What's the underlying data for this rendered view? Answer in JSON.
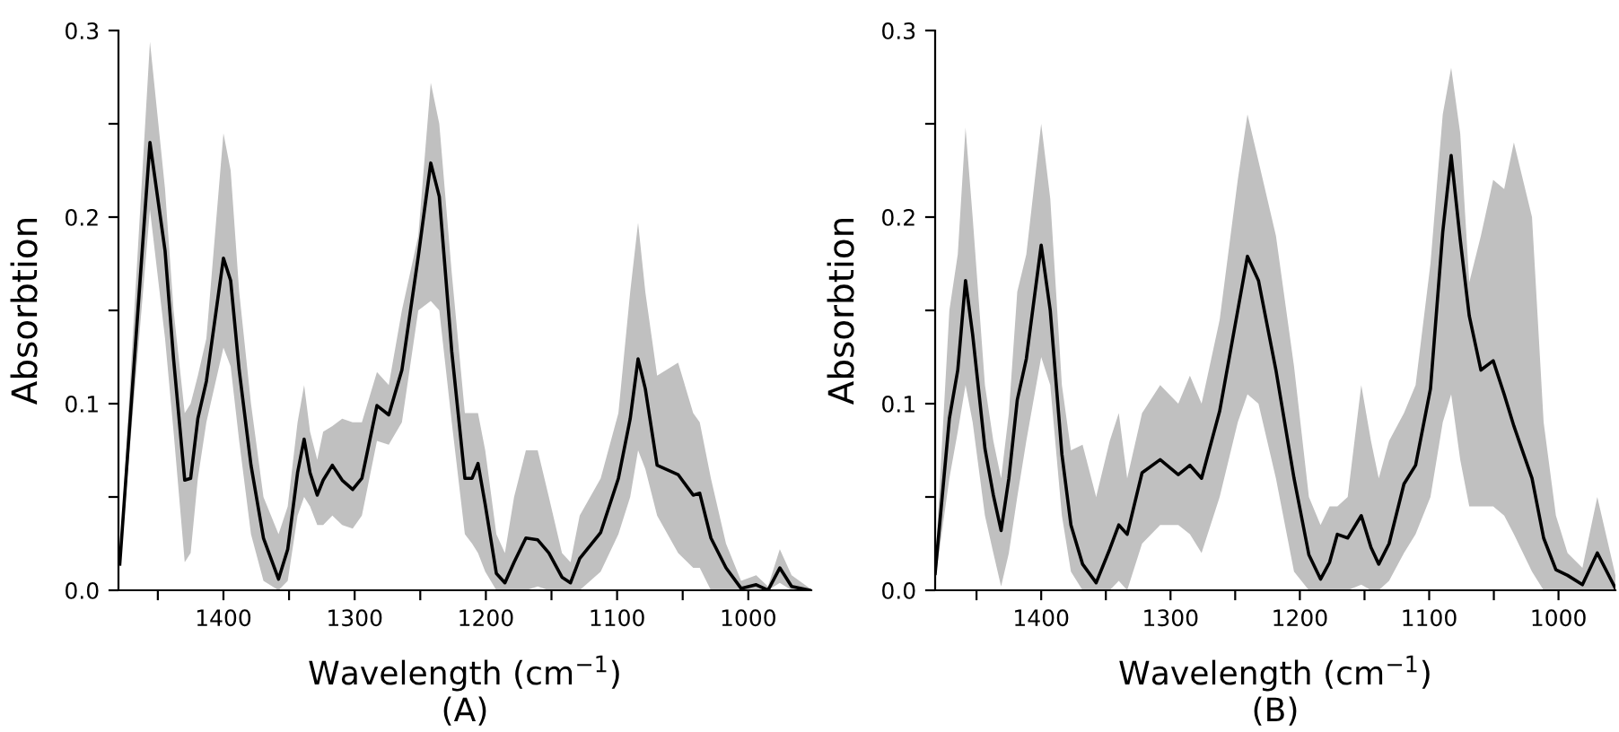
{
  "chart_data": [
    {
      "type": "line",
      "xlabel": "Wavelength (cm$^{−1}$)",
      "ylabel": "Absorbtion",
      "annotations": [
        "(A)"
      ],
      "xlim": [
        1480,
        952
      ],
      "ylim": [
        0,
        0.3
      ],
      "xticks": [
        {
          "value": 1450,
          "label": null
        },
        1400,
        {
          "value": 1350,
          "label": null
        },
        1300,
        {
          "value": 1250,
          "label": null
        },
        1200,
        {
          "value": 1150,
          "label": null
        },
        1100,
        {
          "value": 1050,
          "label": null
        },
        1000
      ],
      "yticks": [
        {
          "value": 0,
          "label": "0.0"
        },
        {
          "value": 0.05,
          "label": null
        },
        0.1,
        {
          "value": 0.15,
          "label": null
        },
        0.2,
        {
          "value": 0.25,
          "label": null
        },
        0.3
      ],
      "grid": false,
      "legend": false,
      "series": [
        {
          "color": "#000000",
          "x": [
            1479,
            1456,
            1444.5,
            1438,
            1429.5,
            1425,
            1419.5,
            1413,
            1400,
            1394.5,
            1388,
            1379,
            1369.5,
            1358,
            1351,
            1343.5,
            1338.5,
            1334,
            1328.5,
            1324,
            1317,
            1309.5,
            1301.5,
            1294.5,
            1283,
            1274,
            1264,
            1251.5,
            1242,
            1235.5,
            1226,
            1216,
            1210.5,
            1206,
            1200.5,
            1192,
            1185.5,
            1178.5,
            1169.5,
            1160.5,
            1152,
            1142,
            1135.5,
            1128.5,
            1112.5,
            1099,
            1090,
            1084,
            1078.5,
            1069.5,
            1053.5,
            1042,
            1037,
            1028.5,
            1017,
            1005.5,
            994,
            985,
            976,
            967,
            953
          ],
          "values": [
            0.014,
            0.24,
            0.182,
            0.124,
            0.059,
            0.06,
            0.092,
            0.112,
            0.178,
            0.166,
            0.118,
            0.067,
            0.028,
            0.006,
            0.022,
            0.063,
            0.081,
            0.063,
            0.051,
            0.059,
            0.067,
            0.059,
            0.054,
            0.06,
            0.099,
            0.094,
            0.118,
            0.179,
            0.229,
            0.211,
            0.128,
            0.06,
            0.06,
            0.068,
            0.046,
            0.009,
            0.004,
            0.015,
            0.028,
            0.027,
            0.02,
            0.007,
            0.004,
            0.017,
            0.031,
            0.06,
            0.092,
            0.124,
            0.108,
            0.067,
            0.062,
            0.051,
            0.052,
            0.028,
            0.012,
            0.001,
            0.003,
            0.0,
            0.012,
            0.002,
            0.0
          ],
          "upper": [
            0.016,
            0.294,
            0.215,
            0.15,
            0.095,
            0.1,
            0.115,
            0.135,
            0.245,
            0.225,
            0.16,
            0.1,
            0.05,
            0.03,
            0.045,
            0.09,
            0.11,
            0.085,
            0.07,
            0.085,
            0.088,
            0.092,
            0.09,
            0.09,
            0.117,
            0.11,
            0.15,
            0.19,
            0.272,
            0.25,
            0.17,
            0.095,
            0.095,
            0.095,
            0.075,
            0.03,
            0.02,
            0.05,
            0.075,
            0.075,
            0.05,
            0.02,
            0.015,
            0.04,
            0.06,
            0.095,
            0.16,
            0.197,
            0.16,
            0.115,
            0.122,
            0.095,
            0.09,
            0.06,
            0.025,
            0.005,
            0.008,
            0.002,
            0.022,
            0.008,
            0.001
          ],
          "lower": [
            0.012,
            0.204,
            0.135,
            0.085,
            0.015,
            0.02,
            0.06,
            0.09,
            0.13,
            0.12,
            0.08,
            0.03,
            0.005,
            0.0,
            0.005,
            0.04,
            0.05,
            0.045,
            0.035,
            0.035,
            0.04,
            0.035,
            0.033,
            0.04,
            0.08,
            0.078,
            0.09,
            0.15,
            0.155,
            0.15,
            0.09,
            0.03,
            0.025,
            0.02,
            0.01,
            0.0,
            0.0,
            0.0,
            0.0,
            0.002,
            0.0,
            0.0,
            0.0,
            0.0,
            0.01,
            0.03,
            0.05,
            0.075,
            0.065,
            0.04,
            0.02,
            0.012,
            0.012,
            0.0,
            0.0,
            0.0,
            0.0,
            0.0,
            0.004,
            0.0,
            0.0
          ]
        }
      ]
    },
    {
      "type": "line",
      "xlabel": "Wavelength (cm$^{−1}$)",
      "ylabel": "Absorbtion",
      "annotations": [
        "(B)"
      ],
      "xlim": [
        1482,
        956
      ],
      "ylim": [
        0,
        0.3
      ],
      "xticks": [
        {
          "value": 1450,
          "label": null
        },
        1400,
        {
          "value": 1350,
          "label": null
        },
        1300,
        {
          "value": 1250,
          "label": null
        },
        1200,
        {
          "value": 1150,
          "label": null
        },
        1100,
        {
          "value": 1050,
          "label": null
        },
        1000
      ],
      "yticks": [
        {
          "value": 0,
          "label": "0.0"
        },
        {
          "value": 0.05,
          "label": null
        },
        0.1,
        {
          "value": 0.15,
          "label": null
        },
        0.2,
        {
          "value": 0.25,
          "label": null
        },
        0.3
      ],
      "grid": false,
      "legend": false,
      "series": [
        {
          "color": "#000000",
          "x": [
            1482,
            1471,
            1464.5,
            1458.5,
            1453,
            1443.5,
            1437,
            1431,
            1425,
            1418.5,
            1411.5,
            1400,
            1393,
            1384,
            1377,
            1368,
            1357.5,
            1347,
            1340,
            1333.5,
            1322,
            1308,
            1294,
            1285,
            1276,
            1262,
            1248,
            1240.5,
            1232,
            1218.5,
            1204.5,
            1193,
            1184,
            1177,
            1171,
            1163,
            1152.5,
            1145,
            1139,
            1131,
            1119.5,
            1110.5,
            1099,
            1089.5,
            1083,
            1076,
            1069,
            1060,
            1050.5,
            1042,
            1034.5,
            1020.5,
            1011.5,
            1002,
            993,
            981.5,
            970,
            956
          ],
          "values": [
            0.009,
            0.092,
            0.118,
            0.166,
            0.137,
            0.076,
            0.051,
            0.032,
            0.06,
            0.102,
            0.124,
            0.185,
            0.15,
            0.073,
            0.035,
            0.014,
            0.004,
            0.022,
            0.035,
            0.03,
            0.063,
            0.07,
            0.062,
            0.067,
            0.06,
            0.096,
            0.15,
            0.179,
            0.166,
            0.118,
            0.06,
            0.019,
            0.006,
            0.015,
            0.03,
            0.028,
            0.04,
            0.023,
            0.014,
            0.025,
            0.057,
            0.067,
            0.108,
            0.192,
            0.233,
            0.188,
            0.147,
            0.118,
            0.123,
            0.105,
            0.088,
            0.06,
            0.028,
            0.011,
            0.008,
            0.003,
            0.02,
            0.001
          ],
          "upper": [
            0.012,
            0.15,
            0.18,
            0.248,
            0.2,
            0.11,
            0.08,
            0.06,
            0.095,
            0.16,
            0.18,
            0.25,
            0.21,
            0.11,
            0.075,
            0.078,
            0.05,
            0.08,
            0.095,
            0.06,
            0.095,
            0.11,
            0.1,
            0.115,
            0.1,
            0.145,
            0.22,
            0.255,
            0.23,
            0.19,
            0.12,
            0.05,
            0.035,
            0.045,
            0.045,
            0.05,
            0.11,
            0.08,
            0.06,
            0.08,
            0.095,
            0.11,
            0.175,
            0.255,
            0.28,
            0.245,
            0.165,
            0.19,
            0.22,
            0.215,
            0.24,
            0.2,
            0.09,
            0.04,
            0.02,
            0.012,
            0.05,
            0.008
          ],
          "lower": [
            0.005,
            0.06,
            0.085,
            0.11,
            0.09,
            0.04,
            0.02,
            0.002,
            0.02,
            0.05,
            0.08,
            0.125,
            0.11,
            0.04,
            0.01,
            0.0,
            0.0,
            0.0,
            0.005,
            0.0,
            0.025,
            0.035,
            0.035,
            0.03,
            0.02,
            0.05,
            0.09,
            0.105,
            0.1,
            0.06,
            0.01,
            0.0,
            0.0,
            0.0,
            0.0,
            0.0,
            0.003,
            0.0,
            0.0,
            0.005,
            0.02,
            0.03,
            0.05,
            0.09,
            0.105,
            0.07,
            0.045,
            0.045,
            0.045,
            0.04,
            0.03,
            0.01,
            0.0,
            0.0,
            0.0,
            0.0,
            0.0,
            0.0
          ]
        }
      ]
    }
  ]
}
